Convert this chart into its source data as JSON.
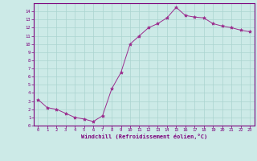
{
  "x": [
    0,
    1,
    2,
    3,
    4,
    5,
    6,
    7,
    8,
    9,
    10,
    11,
    12,
    13,
    14,
    15,
    16,
    17,
    18,
    19,
    20,
    21,
    22,
    23
  ],
  "y": [
    3.2,
    2.2,
    2.0,
    1.5,
    1.0,
    0.8,
    0.5,
    1.2,
    4.5,
    6.5,
    10.0,
    11.0,
    12.0,
    12.5,
    13.2,
    14.5,
    13.5,
    13.3,
    13.2,
    12.5,
    12.2,
    12.0,
    11.7,
    11.5
  ],
  "line_color": "#9b2d8e",
  "marker": "*",
  "marker_size": 3,
  "bg_color": "#cceae7",
  "grid_color": "#aad4d0",
  "axis_color": "#7b007b",
  "ylim": [
    0,
    15
  ],
  "xlim": [
    -0.5,
    23.5
  ],
  "yticks": [
    0,
    1,
    2,
    3,
    4,
    5,
    6,
    7,
    8,
    9,
    10,
    11,
    12,
    13,
    14
  ],
  "xticks": [
    0,
    1,
    2,
    3,
    4,
    5,
    6,
    7,
    8,
    9,
    10,
    11,
    12,
    13,
    14,
    15,
    16,
    17,
    18,
    19,
    20,
    21,
    22,
    23
  ],
  "xlabel": "Windchill (Refroidissement éolien,°C)",
  "xlabel_color": "#7b007b",
  "tick_color": "#7b007b",
  "tick_fontsize": 4.0,
  "xlabel_fontsize": 5.0,
  "linewidth": 0.7
}
